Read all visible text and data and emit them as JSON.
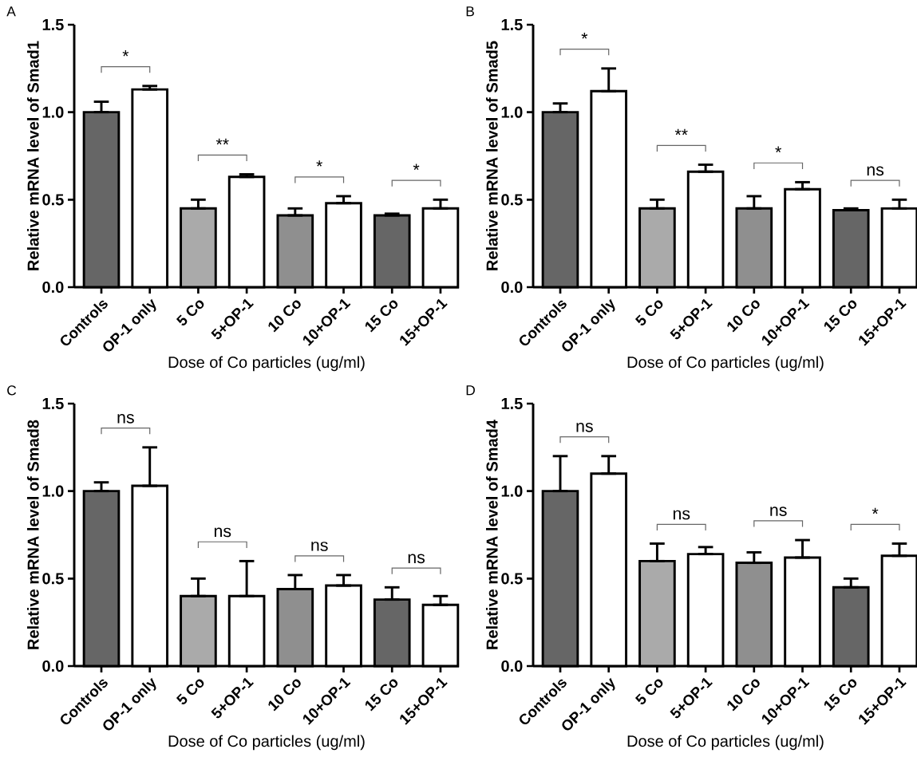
{
  "chart_data": [
    {
      "type": "bar",
      "title": "A",
      "xlabel": "Dose of Co particles (ug/ml)",
      "ylabel": "Relative mRNA level of Smad1",
      "categories": [
        "Controls",
        "OP-1 only",
        "5 Co",
        "5+OP-1",
        "10 Co",
        "10+OP-1",
        "15 Co",
        "15+OP-1"
      ],
      "values": [
        1.0,
        1.13,
        0.45,
        0.63,
        0.41,
        0.48,
        0.41,
        0.45
      ],
      "errors": [
        [
          1.0,
          1.06
        ],
        [
          1.13,
          1.15
        ],
        [
          0.45,
          0.5
        ],
        [
          0.63,
          0.645
        ],
        [
          0.41,
          0.45
        ],
        [
          0.48,
          0.52
        ],
        [
          0.41,
          0.42
        ],
        [
          0.45,
          0.5
        ]
      ],
      "colors": [
        "#666666",
        "#ffffff",
        "#aaaaaa",
        "#ffffff",
        "#8f8f8f",
        "#ffffff",
        "#666666",
        "#ffffff"
      ],
      "ylim": [
        0,
        1.5
      ],
      "yticks": [
        {
          "value": 0,
          "label": "0.0"
        },
        {
          "value": 0.5,
          "label": "0.5"
        },
        {
          "value": 1,
          "label": "1.0"
        },
        {
          "value": 1.5,
          "label": "1.5"
        }
      ],
      "annotations": [
        "*",
        "**",
        "*",
        "*"
      ]
    },
    {
      "type": "bar",
      "title": "B",
      "xlabel": "Dose of Co particles (ug/ml)",
      "ylabel": "Relative mRNA level of Smad5",
      "categories": [
        "Controls",
        "OP-1 only",
        "5 Co",
        "5+OP-1",
        "10 Co",
        "10+OP-1",
        "15 Co",
        "15+OP-1"
      ],
      "values": [
        1.0,
        1.12,
        0.45,
        0.66,
        0.45,
        0.56,
        0.44,
        0.45
      ],
      "errors": [
        [
          1.0,
          1.05
        ],
        [
          1.12,
          1.25
        ],
        [
          0.45,
          0.5
        ],
        [
          0.66,
          0.7
        ],
        [
          0.45,
          0.52
        ],
        [
          0.56,
          0.6
        ],
        [
          0.44,
          0.45
        ],
        [
          0.45,
          0.5
        ]
      ],
      "colors": [
        "#666666",
        "#ffffff",
        "#aaaaaa",
        "#ffffff",
        "#8f8f8f",
        "#ffffff",
        "#666666",
        "#ffffff"
      ],
      "ylim": [
        0,
        1.5
      ],
      "yticks": [
        {
          "value": 0,
          "label": "0.0"
        },
        {
          "value": 0.5,
          "label": "0.5"
        },
        {
          "value": 1,
          "label": "1.0"
        },
        {
          "value": 1.5,
          "label": "1.5"
        }
      ],
      "annotations": [
        "*",
        "**",
        "*",
        "ns"
      ]
    },
    {
      "type": "bar",
      "title": "C",
      "xlabel": "Dose of Co particles (ug/ml)",
      "ylabel": "Relative mRNA level of Smad8",
      "categories": [
        "Controls",
        "OP-1 only",
        "5 Co",
        "5+OP-1",
        "10 Co",
        "10+OP-1",
        "15 Co",
        "15+OP-1"
      ],
      "values": [
        1.0,
        1.03,
        0.4,
        0.4,
        0.44,
        0.46,
        0.38,
        0.35
      ],
      "errors": [
        [
          1.0,
          1.05
        ],
        [
          1.03,
          1.25
        ],
        [
          0.4,
          0.5
        ],
        [
          0.4,
          0.6
        ],
        [
          0.44,
          0.52
        ],
        [
          0.46,
          0.52
        ],
        [
          0.38,
          0.45
        ],
        [
          0.35,
          0.4
        ]
      ],
      "colors": [
        "#666666",
        "#ffffff",
        "#aaaaaa",
        "#ffffff",
        "#8f8f8f",
        "#ffffff",
        "#666666",
        "#ffffff"
      ],
      "ylim": [
        0,
        1.5
      ],
      "yticks": [
        {
          "value": 0,
          "label": "0.0"
        },
        {
          "value": 0.5,
          "label": "0.5"
        },
        {
          "value": 1,
          "label": "1.0"
        },
        {
          "value": 1.5,
          "label": "1.5"
        }
      ],
      "annotations": [
        "ns",
        "ns",
        "ns",
        "ns"
      ]
    },
    {
      "type": "bar",
      "title": "D",
      "xlabel": "Dose of Co particles (ug/ml)",
      "ylabel": "Relative mRNA level of Smad4",
      "categories": [
        "Controls",
        "OP-1 only",
        "5 Co",
        "5+OP-1",
        "10 Co",
        "10+OP-1",
        "15 Co",
        "15+OP-1"
      ],
      "values": [
        1.0,
        1.1,
        0.6,
        0.64,
        0.59,
        0.62,
        0.45,
        0.63
      ],
      "errors": [
        [
          1.0,
          1.2
        ],
        [
          1.1,
          1.2
        ],
        [
          0.6,
          0.7
        ],
        [
          0.64,
          0.68
        ],
        [
          0.59,
          0.65
        ],
        [
          0.62,
          0.72
        ],
        [
          0.45,
          0.5
        ],
        [
          0.63,
          0.7
        ]
      ],
      "colors": [
        "#666666",
        "#ffffff",
        "#aaaaaa",
        "#ffffff",
        "#8f8f8f",
        "#ffffff",
        "#666666",
        "#ffffff"
      ],
      "ylim": [
        0,
        1.5
      ],
      "yticks": [
        {
          "value": 0,
          "label": "0.0"
        },
        {
          "value": 0.5,
          "label": "0.5"
        },
        {
          "value": 1,
          "label": "1.0"
        },
        {
          "value": 1.5,
          "label": "1.5"
        }
      ],
      "annotations": [
        "ns",
        "ns",
        "ns",
        "*"
      ]
    }
  ]
}
